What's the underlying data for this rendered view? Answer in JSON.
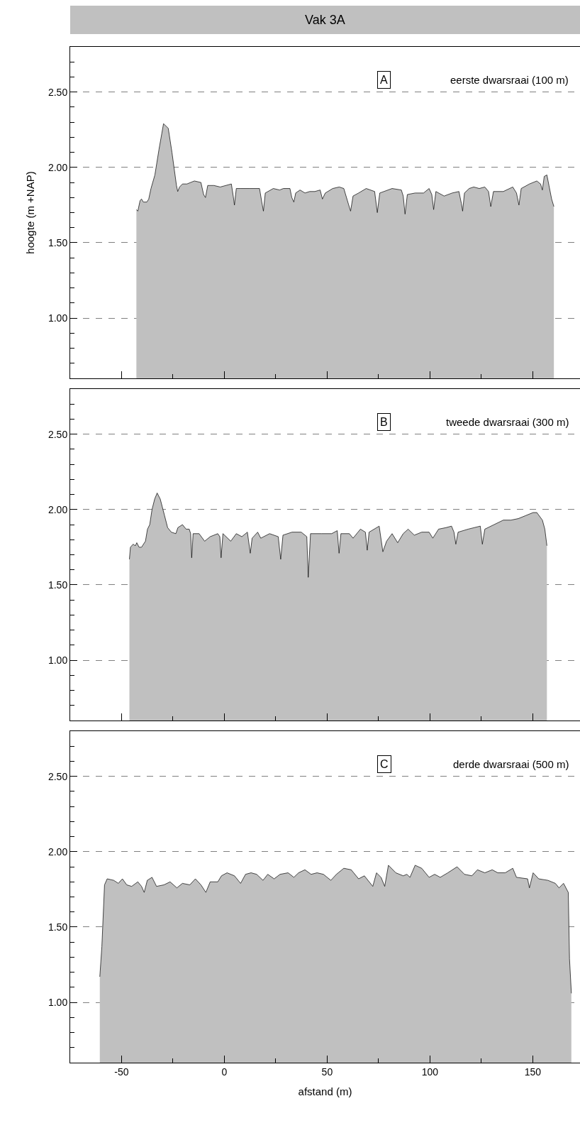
{
  "chart_data": [
    {
      "type": "area",
      "title": "Vak 3A",
      "ylabel": "hoogte (m +NAP)",
      "annotations": [
        "A",
        "eerste dwarsraai (100 m)"
      ],
      "tick_labels": "y",
      "grid": "y",
      "color": "#c0c0c0",
      "x": [
        -42.8,
        -42.1,
        -41.0,
        -40.3,
        -39.4,
        -37.7,
        -36.8,
        -35.7,
        -33.8,
        -31.8,
        -29.6,
        -27.3,
        -25.5,
        -23.3,
        -22.7,
        -21.8,
        -20.4,
        -18.2,
        -14.6,
        -11.4,
        -10.1,
        -9.2,
        -8.1,
        -5.1,
        -2.0,
        3.4,
        4.3,
        4.9,
        5.8,
        8.1,
        12.3,
        17.1,
        18.2,
        19.0,
        19.9,
        23.8,
        26.9,
        28.7,
        31.9,
        32.8,
        33.8,
        34.7,
        36.8,
        39.2,
        41.5,
        44.0,
        46.6,
        47.7,
        49.1,
        52.7,
        55.9,
        58.1,
        60.5,
        61.4,
        62.6,
        65.3,
        69.0,
        73.1,
        74.4,
        75.6,
        81.6,
        86.1,
        87.0,
        87.9,
        89.0,
        92.8,
        96.9,
        99.6,
        100.9,
        101.8,
        102.9,
        106.9,
        110.8,
        114.1,
        115.3,
        115.9,
        116.8,
        119.1,
        121.3,
        124.0,
        126.7,
        128.5,
        129.6,
        130.9,
        135.7,
        140.3,
        142.1,
        143.3,
        144.4,
        148.4,
        152.0,
        153.8,
        154.7,
        155.6,
        156.9,
        157.9,
        159.2,
        160.3
      ],
      "values": [
        1.72,
        1.71,
        1.78,
        1.79,
        1.77,
        1.77,
        1.79,
        1.86,
        1.95,
        2.12,
        2.29,
        2.26,
        2.1,
        1.88,
        1.84,
        1.87,
        1.89,
        1.89,
        1.91,
        1.9,
        1.82,
        1.8,
        1.88,
        1.88,
        1.87,
        1.89,
        1.81,
        1.75,
        1.86,
        1.86,
        1.86,
        1.86,
        1.77,
        1.71,
        1.83,
        1.86,
        1.85,
        1.86,
        1.86,
        1.8,
        1.77,
        1.83,
        1.85,
        1.83,
        1.84,
        1.84,
        1.85,
        1.79,
        1.83,
        1.86,
        1.87,
        1.86,
        1.75,
        1.71,
        1.81,
        1.83,
        1.86,
        1.84,
        1.7,
        1.83,
        1.86,
        1.85,
        1.81,
        1.69,
        1.82,
        1.83,
        1.83,
        1.86,
        1.82,
        1.72,
        1.84,
        1.81,
        1.83,
        1.84,
        1.76,
        1.71,
        1.83,
        1.86,
        1.87,
        1.86,
        1.87,
        1.84,
        1.74,
        1.84,
        1.84,
        1.87,
        1.83,
        1.75,
        1.86,
        1.89,
        1.91,
        1.89,
        1.85,
        1.94,
        1.95,
        1.88,
        1.79,
        1.74
      ],
      "xlim": [
        -75,
        173
      ],
      "xticks": [
        -50,
        {
          "value": -25,
          "label": null
        },
        0,
        {
          "value": 25,
          "label": null
        },
        50,
        {
          "value": 75,
          "label": null
        },
        100,
        {
          "value": 125,
          "label": null
        },
        150
      ],
      "ylim": [
        0.6,
        2.8
      ],
      "yticks": [
        {
          "value": 0.7,
          "label": null
        },
        {
          "value": 0.8,
          "label": null
        },
        {
          "value": 0.9,
          "label": null
        },
        {
          "value": 1.0,
          "label": "1.00"
        },
        {
          "value": 1.1,
          "label": null
        },
        {
          "value": 1.2,
          "label": null
        },
        {
          "value": 1.3,
          "label": null
        },
        {
          "value": 1.4,
          "label": null
        },
        {
          "value": 1.5,
          "label": "1.50"
        },
        {
          "value": 1.6,
          "label": null
        },
        {
          "value": 1.7,
          "label": null
        },
        {
          "value": 1.8,
          "label": null
        },
        {
          "value": 1.9,
          "label": null
        },
        {
          "value": 2.0,
          "label": "2.00"
        },
        {
          "value": 2.1,
          "label": null
        },
        {
          "value": 2.2,
          "label": null
        },
        {
          "value": 2.3,
          "label": null
        },
        {
          "value": 2.4,
          "label": null
        },
        {
          "value": 2.5,
          "label": "2.50"
        },
        {
          "value": 2.6,
          "label": null
        },
        {
          "value": 2.7,
          "label": null
        }
      ]
    },
    {
      "type": "area",
      "annotations": [
        "B",
        "tweede dwarsraai (300 m)"
      ],
      "tick_labels": "y",
      "grid": "y",
      "color": "#c0c0c0",
      "x": [
        -46.2,
        -45.7,
        -44.4,
        -43.3,
        -42.6,
        -41.5,
        -40.3,
        -38.4,
        -37.4,
        -36.3,
        -35.2,
        -33.9,
        -32.7,
        -31.2,
        -29.1,
        -27.6,
        -25.8,
        -23.6,
        -22.6,
        -20.4,
        -18.6,
        -17.1,
        -16.4,
        -15.9,
        -15.2,
        -12.3,
        -9.6,
        -6.9,
        -3.2,
        -2.2,
        -1.6,
        -0.7,
        3.1,
        5.8,
        8.5,
        11.2,
        12.6,
        13.5,
        16.2,
        17.7,
        22.0,
        26.2,
        27.4,
        28.5,
        32.9,
        37.4,
        40.1,
        40.8,
        41.9,
        47.3,
        52.2,
        54.9,
        55.8,
        56.7,
        60.8,
        62.6,
        66.2,
        68.6,
        69.5,
        70.4,
        75.3,
        77.1,
        78.9,
        81.6,
        84.3,
        87.0,
        89.4,
        92.4,
        96.0,
        99.6,
        101.4,
        104.2,
        107.8,
        110.5,
        111.7,
        112.6,
        113.7,
        118.6,
        124.5,
        125.5,
        126.7,
        131.2,
        135.7,
        139.4,
        143.0,
        146.6,
        150.2,
        152.0,
        154.7,
        155.9,
        156.9
      ],
      "values": [
        1.67,
        1.75,
        1.77,
        1.76,
        1.78,
        1.75,
        1.75,
        1.79,
        1.87,
        1.9,
        2.0,
        2.07,
        2.11,
        2.07,
        1.96,
        1.88,
        1.85,
        1.84,
        1.88,
        1.9,
        1.87,
        1.87,
        1.84,
        1.68,
        1.84,
        1.84,
        1.79,
        1.82,
        1.84,
        1.82,
        1.68,
        1.84,
        1.79,
        1.84,
        1.82,
        1.85,
        1.71,
        1.81,
        1.85,
        1.81,
        1.84,
        1.82,
        1.67,
        1.83,
        1.85,
        1.85,
        1.82,
        1.55,
        1.84,
        1.84,
        1.84,
        1.86,
        1.71,
        1.84,
        1.84,
        1.81,
        1.87,
        1.85,
        1.73,
        1.85,
        1.89,
        1.72,
        1.79,
        1.84,
        1.78,
        1.84,
        1.87,
        1.83,
        1.85,
        1.85,
        1.81,
        1.87,
        1.88,
        1.89,
        1.85,
        1.77,
        1.85,
        1.87,
        1.89,
        1.77,
        1.87,
        1.9,
        1.93,
        1.93,
        1.94,
        1.96,
        1.98,
        1.98,
        1.93,
        1.87,
        1.76
      ],
      "xlim": [
        -75,
        173
      ],
      "xticks": [
        -50,
        {
          "value": -25,
          "label": null
        },
        0,
        {
          "value": 25,
          "label": null
        },
        50,
        {
          "value": 75,
          "label": null
        },
        100,
        {
          "value": 125,
          "label": null
        },
        150
      ],
      "ylim": [
        0.6,
        2.8
      ],
      "yticks": [
        {
          "value": 0.7,
          "label": null
        },
        {
          "value": 0.8,
          "label": null
        },
        {
          "value": 0.9,
          "label": null
        },
        {
          "value": 1.0,
          "label": "1.00"
        },
        {
          "value": 1.1,
          "label": null
        },
        {
          "value": 1.2,
          "label": null
        },
        {
          "value": 1.3,
          "label": null
        },
        {
          "value": 1.4,
          "label": null
        },
        {
          "value": 1.5,
          "label": "1.50"
        },
        {
          "value": 1.6,
          "label": null
        },
        {
          "value": 1.7,
          "label": null
        },
        {
          "value": 1.8,
          "label": null
        },
        {
          "value": 1.9,
          "label": null
        },
        {
          "value": 2.0,
          "label": "2.00"
        },
        {
          "value": 2.1,
          "label": null
        },
        {
          "value": 2.2,
          "label": null
        },
        {
          "value": 2.3,
          "label": null
        },
        {
          "value": 2.4,
          "label": null
        },
        {
          "value": 2.5,
          "label": "2.50"
        },
        {
          "value": 2.6,
          "label": null
        },
        {
          "value": 2.7,
          "label": null
        }
      ]
    },
    {
      "type": "area",
      "xlabel": "afstand (m)",
      "annotations": [
        "C",
        "derde dwarsraai (500 m)"
      ],
      "grid": "y",
      "color": "#c0c0c0",
      "x": [
        -60.6,
        -59.6,
        -58.3,
        -57.0,
        -53.8,
        -51.6,
        -49.6,
        -47.5,
        -45.1,
        -42.1,
        -40.3,
        -39.0,
        -37.5,
        -35.2,
        -33.0,
        -29.4,
        -26.4,
        -23.1,
        -20.4,
        -16.8,
        -14.1,
        -11.4,
        -9.0,
        -6.9,
        -3.2,
        -1.4,
        1.3,
        4.9,
        7.9,
        10.3,
        13.0,
        15.7,
        18.8,
        21.1,
        24.2,
        27.1,
        31.0,
        33.8,
        36.1,
        39.2,
        42.2,
        45.1,
        48.2,
        51.8,
        54.5,
        58.1,
        61.7,
        65.3,
        68.1,
        72.2,
        74.0,
        76.2,
        78.0,
        79.8,
        83.4,
        87.0,
        88.8,
        90.3,
        92.8,
        96.0,
        99.6,
        102.3,
        105.0,
        108.7,
        113.2,
        116.8,
        120.4,
        123.1,
        126.7,
        130.3,
        133.0,
        136.6,
        140.3,
        142.1,
        147.5,
        148.4,
        150.2,
        152.9,
        157.4,
        161.0,
        162.8,
        165.0,
        167.3,
        167.9,
        168.8
      ],
      "values": [
        1.17,
        1.37,
        1.78,
        1.82,
        1.81,
        1.79,
        1.82,
        1.78,
        1.77,
        1.8,
        1.77,
        1.73,
        1.81,
        1.83,
        1.77,
        1.78,
        1.8,
        1.76,
        1.79,
        1.78,
        1.82,
        1.78,
        1.73,
        1.8,
        1.8,
        1.84,
        1.86,
        1.84,
        1.79,
        1.85,
        1.86,
        1.85,
        1.81,
        1.85,
        1.82,
        1.85,
        1.86,
        1.83,
        1.86,
        1.88,
        1.85,
        1.86,
        1.85,
        1.81,
        1.85,
        1.89,
        1.88,
        1.82,
        1.84,
        1.77,
        1.86,
        1.83,
        1.77,
        1.91,
        1.86,
        1.84,
        1.85,
        1.83,
        1.91,
        1.89,
        1.83,
        1.85,
        1.83,
        1.86,
        1.9,
        1.85,
        1.84,
        1.88,
        1.86,
        1.88,
        1.86,
        1.86,
        1.89,
        1.83,
        1.82,
        1.76,
        1.86,
        1.82,
        1.81,
        1.79,
        1.76,
        1.79,
        1.73,
        1.29,
        1.06
      ],
      "xlim": [
        -75,
        173
      ],
      "xticks": [
        {
          "value": -50,
          "label": "-50"
        },
        {
          "value": -25,
          "label": null
        },
        0,
        {
          "value": 25,
          "label": null
        },
        50,
        {
          "value": 75,
          "label": null
        },
        100,
        {
          "value": 125,
          "label": null
        },
        150
      ],
      "ylim": [
        0.6,
        2.8
      ],
      "yticks": [
        {
          "value": 0.7,
          "label": null
        },
        {
          "value": 0.8,
          "label": null
        },
        {
          "value": 0.9,
          "label": null
        },
        {
          "value": 1.0,
          "label": "1.00"
        },
        {
          "value": 1.1,
          "label": null
        },
        {
          "value": 1.2,
          "label": null
        },
        {
          "value": 1.3,
          "label": null
        },
        {
          "value": 1.4,
          "label": null
        },
        {
          "value": 1.5,
          "label": "1.50"
        },
        {
          "value": 1.6,
          "label": null
        },
        {
          "value": 1.7,
          "label": null
        },
        {
          "value": 1.8,
          "label": null
        },
        {
          "value": 1.9,
          "label": null
        },
        {
          "value": 2.0,
          "label": "2.00"
        },
        {
          "value": 2.1,
          "label": null
        },
        {
          "value": 2.2,
          "label": null
        },
        {
          "value": 2.3,
          "label": null
        },
        {
          "value": 2.4,
          "label": null
        },
        {
          "value": 2.5,
          "label": "2.50"
        },
        {
          "value": 2.6,
          "label": null
        },
        {
          "value": 2.7,
          "label": null
        }
      ]
    }
  ]
}
